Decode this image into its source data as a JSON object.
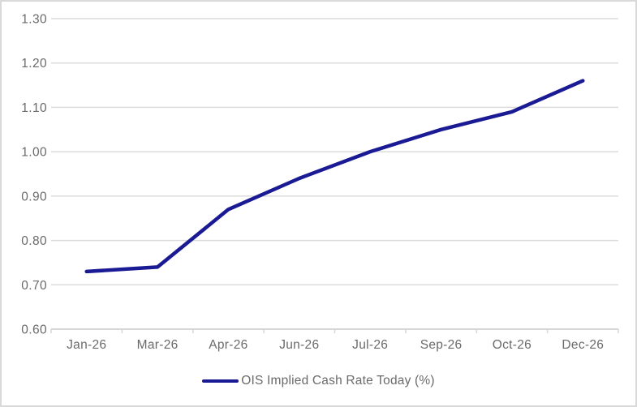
{
  "chart_data": {
    "type": "line",
    "title": "",
    "categories": [
      "Jan-26",
      "Mar-26",
      "Apr-26",
      "Jun-26",
      "Jul-26",
      "Sep-26",
      "Oct-26",
      "Dec-26"
    ],
    "series": [
      {
        "name": "OIS Implied Cash Rate Today (%)",
        "values": [
          0.73,
          0.74,
          0.87,
          0.94,
          1.0,
          1.05,
          1.09,
          1.16
        ],
        "color": "#1A1A94"
      }
    ],
    "xlabel": "",
    "ylabel": "",
    "ylim": [
      0.6,
      1.3
    ],
    "yticks": [
      {
        "label": "1.30",
        "value": 1.3
      },
      {
        "label": "1.20",
        "value": 1.2
      },
      {
        "label": "1.10",
        "value": 1.1
      },
      {
        "label": "1.00",
        "value": 1.0
      },
      {
        "label": "0.90",
        "value": 0.9
      },
      {
        "label": "0.80",
        "value": 0.8
      },
      {
        "label": "0.70",
        "value": 0.7
      },
      {
        "label": "0.60",
        "value": 0.6
      }
    ],
    "grid": "horizontal",
    "legend": {
      "position": "bottom",
      "label": "OIS Implied Cash Rate Today (%)"
    },
    "colors": {
      "line": "#1A1A94",
      "gridline": "#DCDCDC",
      "axis": "#D6D6D6",
      "text": "#6A6A6A",
      "border": "#D9D9D9",
      "background": "#FFFFFF"
    }
  }
}
